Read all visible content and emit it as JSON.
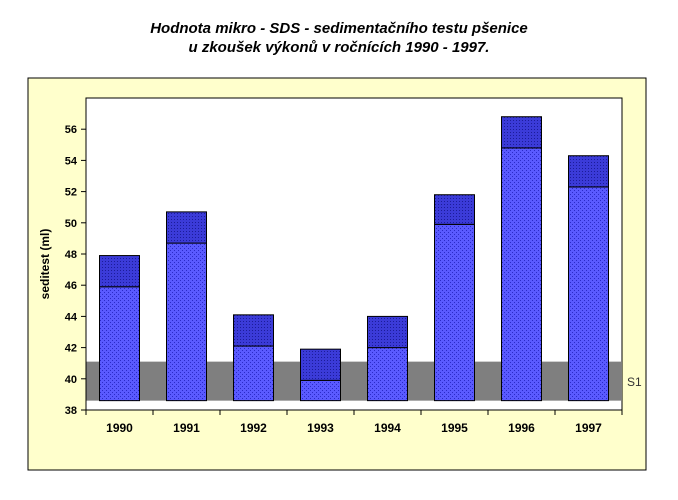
{
  "chart_data": {
    "type": "bar",
    "title_line1": "Hodnota mikro - SDS - sedimentačního testu pšenice",
    "title_line2": "u zkoušek výkonů v ročnících 1990 - 1997.",
    "ylabel": "seditest (ml)",
    "xlabel": "",
    "ylim": [
      38,
      58
    ],
    "yticks": [
      "38",
      "40",
      "42",
      "44",
      "46",
      "48",
      "50",
      "52",
      "54",
      "56"
    ],
    "categories": [
      "1990",
      "1991",
      "1992",
      "1993",
      "1994",
      "1995",
      "1996",
      "1997"
    ],
    "values": [
      47.9,
      50.7,
      44.1,
      41.9,
      44.0,
      51.8,
      56.8,
      54.3
    ],
    "inner_mark": [
      45.9,
      48.7,
      42.1,
      39.9,
      42.0,
      49.9,
      54.8,
      52.3
    ],
    "bar_base": 38.6,
    "reference_band": {
      "label": "S1",
      "from": 38.6,
      "to": 41.1
    },
    "colors": {
      "plot_background": "#ffffcc",
      "bar_fill": "#4d4dff",
      "bar_cap": "#3333cc",
      "band": "#7f7f7f"
    }
  }
}
